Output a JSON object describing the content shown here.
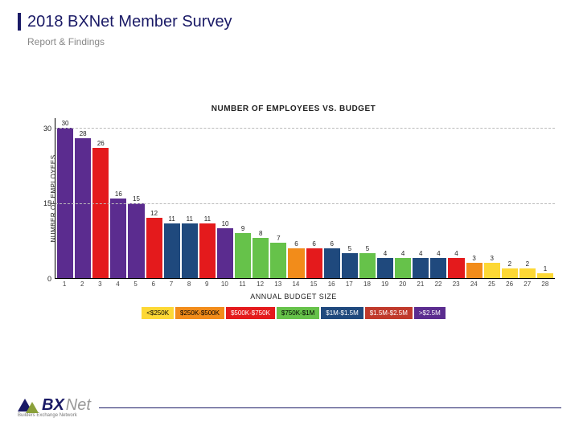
{
  "header": {
    "title": "2018 BXNet Member Survey",
    "subtitle": "Report & Findings",
    "accent_color": "#1a1a66"
  },
  "chart": {
    "type": "bar",
    "title": "NUMBER OF EMPLOYEES VS. BUDGET",
    "ylabel": "NUMBER OF EMPLOYEES",
    "xlabel": "ANNUAL BUDGET SIZE",
    "ylim_max": 32,
    "yticks": [
      0,
      15,
      30
    ],
    "grid_color": "#bbbbbb",
    "background_color": "#ffffff",
    "title_fontsize": 10,
    "label_fontsize": 9,
    "tick_fontsize": 8,
    "bars": [
      {
        "x": "1",
        "value": 30,
        "color": "#5b2c8f"
      },
      {
        "x": "2",
        "value": 28,
        "color": "#5b2c8f"
      },
      {
        "x": "3",
        "value": 26,
        "color": "#e41a1c"
      },
      {
        "x": "4",
        "value": 16,
        "color": "#5b2c8f"
      },
      {
        "x": "5",
        "value": 15,
        "color": "#5b2c8f"
      },
      {
        "x": "6",
        "value": 12,
        "color": "#e41a1c"
      },
      {
        "x": "7",
        "value": 11,
        "color": "#1f497d"
      },
      {
        "x": "8",
        "value": 11,
        "color": "#1f497d"
      },
      {
        "x": "9",
        "value": 11,
        "color": "#e41a1c"
      },
      {
        "x": "10",
        "value": 10,
        "color": "#5b2c8f"
      },
      {
        "x": "11",
        "value": 9,
        "color": "#66c24a"
      },
      {
        "x": "12",
        "value": 8,
        "color": "#66c24a"
      },
      {
        "x": "13",
        "value": 7,
        "color": "#66c24a"
      },
      {
        "x": "14",
        "value": 6,
        "color": "#f28c1a"
      },
      {
        "x": "15",
        "value": 6,
        "color": "#e41a1c"
      },
      {
        "x": "16",
        "value": 6,
        "color": "#1f497d"
      },
      {
        "x": "17",
        "value": 5,
        "color": "#1f497d"
      },
      {
        "x": "18",
        "value": 5,
        "color": "#66c24a"
      },
      {
        "x": "19",
        "value": 4,
        "color": "#1f497d"
      },
      {
        "x": "20",
        "value": 4,
        "color": "#66c24a"
      },
      {
        "x": "21",
        "value": 4,
        "color": "#1f497d"
      },
      {
        "x": "22",
        "value": 4,
        "color": "#1f497d"
      },
      {
        "x": "23",
        "value": 4,
        "color": "#e41a1c"
      },
      {
        "x": "24",
        "value": 3,
        "color": "#f28c1a"
      },
      {
        "x": "25",
        "value": 3,
        "color": "#fdd835"
      },
      {
        "x": "26",
        "value": 2,
        "color": "#fdd835"
      },
      {
        "x": "27",
        "value": 2,
        "color": "#fdd835"
      },
      {
        "x": "28",
        "value": 1,
        "color": "#fdd835"
      }
    ],
    "legend": [
      {
        "label": "<$250K",
        "bg": "#fdd835",
        "fg": "#000000"
      },
      {
        "label": "$250K-$500K",
        "bg": "#f28c1a",
        "fg": "#000000"
      },
      {
        "label": "$500K-$750K",
        "bg": "#e41a1c",
        "fg": "#ffffff"
      },
      {
        "label": "$750K-$1M",
        "bg": "#66c24a",
        "fg": "#000000"
      },
      {
        "label": "$1M-$1.5M",
        "bg": "#1f497d",
        "fg": "#ffffff"
      },
      {
        "label": "$1.5M-$2.5M",
        "bg": "#c0392b",
        "fg": "#ffffff"
      },
      {
        "label": ">$2.5M",
        "bg": "#5b2c8f",
        "fg": "#ffffff"
      }
    ]
  },
  "footer": {
    "logo_main": "BX",
    "logo_sub": "Net",
    "logo_tagline": "Builders Exchange Network"
  }
}
